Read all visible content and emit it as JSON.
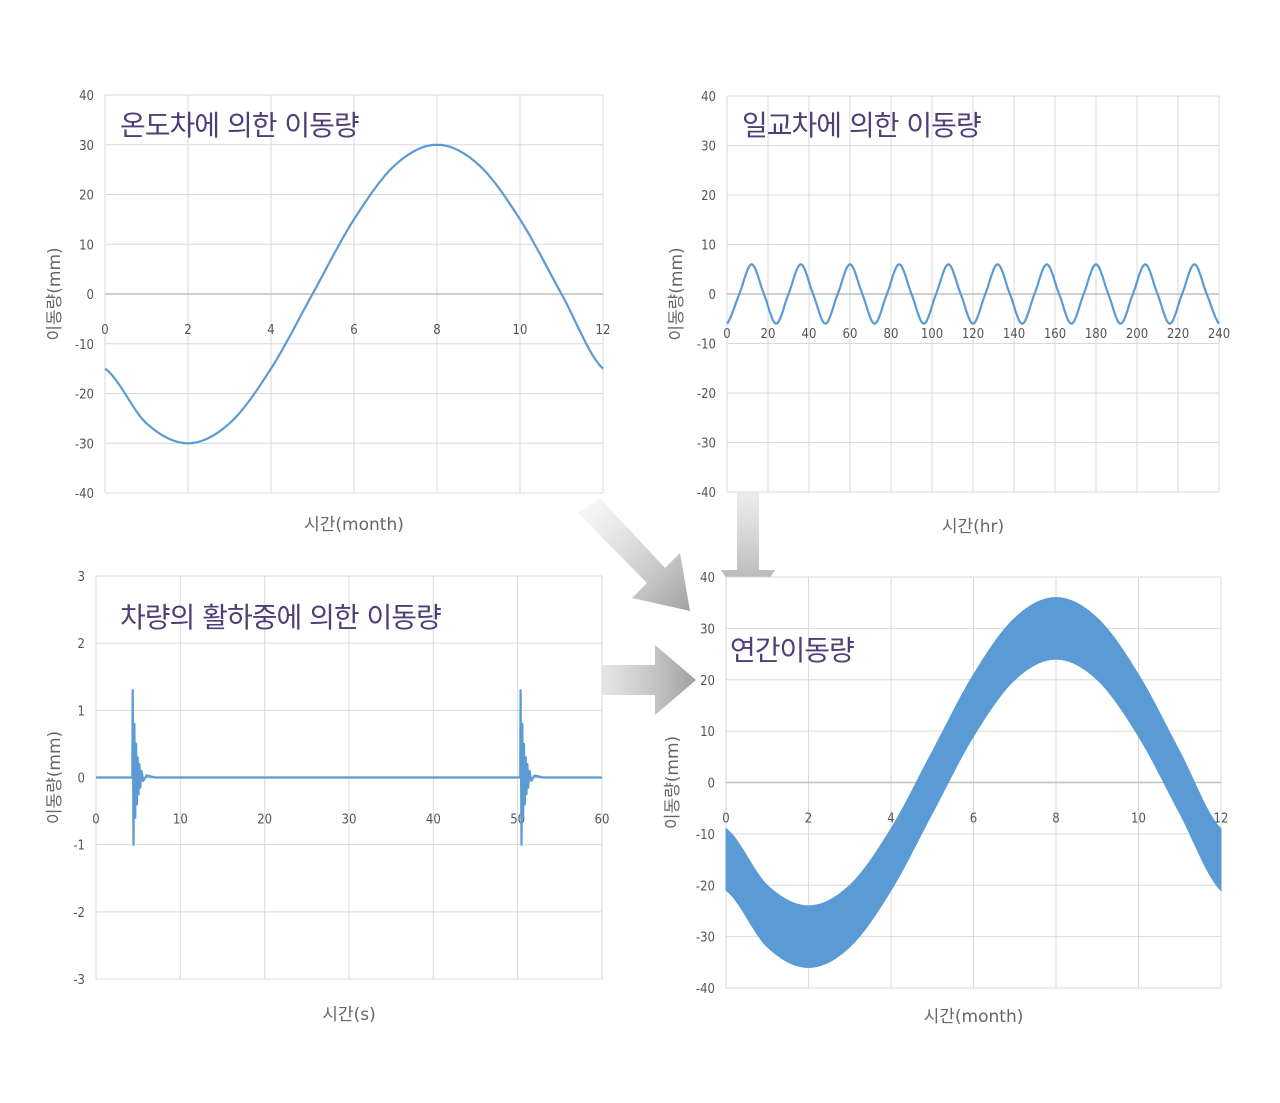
{
  "chart_data": [
    {
      "type": "line",
      "title": "온도차에 의한 이동량",
      "xlabel": "시간(month)",
      "ylabel": "이동량(mm)",
      "xlim": [
        0,
        12
      ],
      "ylim": [
        -40,
        40
      ],
      "xticks": [
        0,
        2,
        4,
        6,
        8,
        10,
        12
      ],
      "yticks": [
        -40,
        -30,
        -20,
        -10,
        0,
        10,
        20,
        30,
        40
      ],
      "grid": true,
      "color": "#5b9bd5",
      "series": [
        {
          "x": [
            0,
            1,
            2,
            3,
            4,
            5,
            6,
            7,
            8,
            9,
            10,
            11,
            12
          ],
          "y": [
            -15,
            -26,
            -30,
            -26,
            -15,
            0,
            15,
            26,
            30,
            26,
            15,
            0,
            -15
          ]
        }
      ]
    },
    {
      "type": "line",
      "title": "일교차에 의한 이동량",
      "xlabel": "시간(hr)",
      "ylabel": "이동량(mm)",
      "xlim": [
        0,
        240
      ],
      "ylim": [
        -40,
        40
      ],
      "xticks": [
        0,
        20,
        40,
        60,
        80,
        100,
        120,
        140,
        160,
        180,
        200,
        220,
        240
      ],
      "yticks": [
        -40,
        -30,
        -20,
        -10,
        0,
        10,
        20,
        30,
        40
      ],
      "grid": true,
      "color": "#5b9bd5",
      "series": [
        {
          "x": [
            0,
            6,
            12,
            18,
            24,
            30,
            36,
            42,
            48,
            54,
            60,
            66,
            72,
            78,
            84,
            90,
            96,
            102,
            108,
            114,
            120,
            126,
            132,
            138,
            144,
            150,
            156,
            162,
            168,
            174,
            180,
            186,
            192,
            198,
            204,
            210,
            216,
            222,
            228,
            234,
            240
          ],
          "y": [
            -6,
            0,
            6,
            0,
            -6,
            0,
            6,
            0,
            -6,
            0,
            6,
            0,
            -6,
            0,
            6,
            0,
            -6,
            0,
            6,
            0,
            -6,
            0,
            6,
            0,
            -6,
            0,
            6,
            0,
            -6,
            0,
            6,
            0,
            -6,
            0,
            6,
            0,
            -6,
            0,
            6,
            0,
            -6
          ]
        }
      ]
    },
    {
      "type": "line",
      "title": "차량의 활하중에 의한 이동량",
      "xlabel": "시간(s)",
      "ylabel": "이동량(mm)",
      "xlim": [
        0,
        60
      ],
      "ylim": [
        -3,
        3
      ],
      "xticks": [
        0,
        10,
        20,
        30,
        40,
        50,
        60
      ],
      "yticks": [
        -3,
        -2,
        -1,
        0,
        1,
        2,
        3
      ],
      "grid": true,
      "color": "#5b9bd5",
      "series": [
        {
          "x": [
            0,
            4.3,
            4.35,
            4.45,
            4.55,
            4.65,
            4.75,
            4.85,
            4.95,
            5.05,
            5.15,
            5.25,
            5.4,
            5.6,
            6,
            7,
            50,
            50.3,
            50.35,
            50.45,
            50.55,
            50.65,
            50.75,
            50.85,
            50.95,
            51.05,
            51.15,
            51.25,
            51.4,
            51.6,
            52,
            53,
            60
          ],
          "y": [
            0,
            0,
            1.3,
            -1,
            0.8,
            -0.6,
            0.5,
            -0.4,
            0.3,
            -0.25,
            0.2,
            -0.15,
            0.1,
            -0.05,
            0.03,
            0,
            0,
            0,
            1.3,
            -1,
            0.8,
            -0.6,
            0.5,
            -0.4,
            0.3,
            -0.25,
            0.2,
            -0.15,
            0.1,
            -0.05,
            0.03,
            0,
            0
          ]
        }
      ]
    },
    {
      "type": "area",
      "title": "연간이동량",
      "xlabel": "시간(month)",
      "ylabel": "이동량(mm)",
      "xlim": [
        0,
        12
      ],
      "ylim": [
        -40,
        40
      ],
      "xticks": [
        0,
        2,
        4,
        6,
        8,
        10,
        12
      ],
      "yticks": [
        -40,
        -30,
        -20,
        -10,
        0,
        10,
        20,
        30,
        40
      ],
      "grid": true,
      "color": "#5b9bd5",
      "series": [
        {
          "name": "upper",
          "x": [
            0,
            1,
            2,
            3,
            4,
            5,
            6,
            7,
            8,
            9,
            10,
            11,
            12
          ],
          "y": [
            -9,
            -20,
            -24,
            -20,
            -9,
            6,
            21,
            32,
            36,
            32,
            21,
            6,
            -9
          ]
        },
        {
          "name": "lower",
          "x": [
            0,
            1,
            2,
            3,
            4,
            5,
            6,
            7,
            8,
            9,
            10,
            11,
            12
          ],
          "y": [
            -21,
            -32,
            -36,
            -32,
            -21,
            -6,
            9,
            20,
            24,
            20,
            9,
            -6,
            -21
          ]
        }
      ]
    }
  ]
}
